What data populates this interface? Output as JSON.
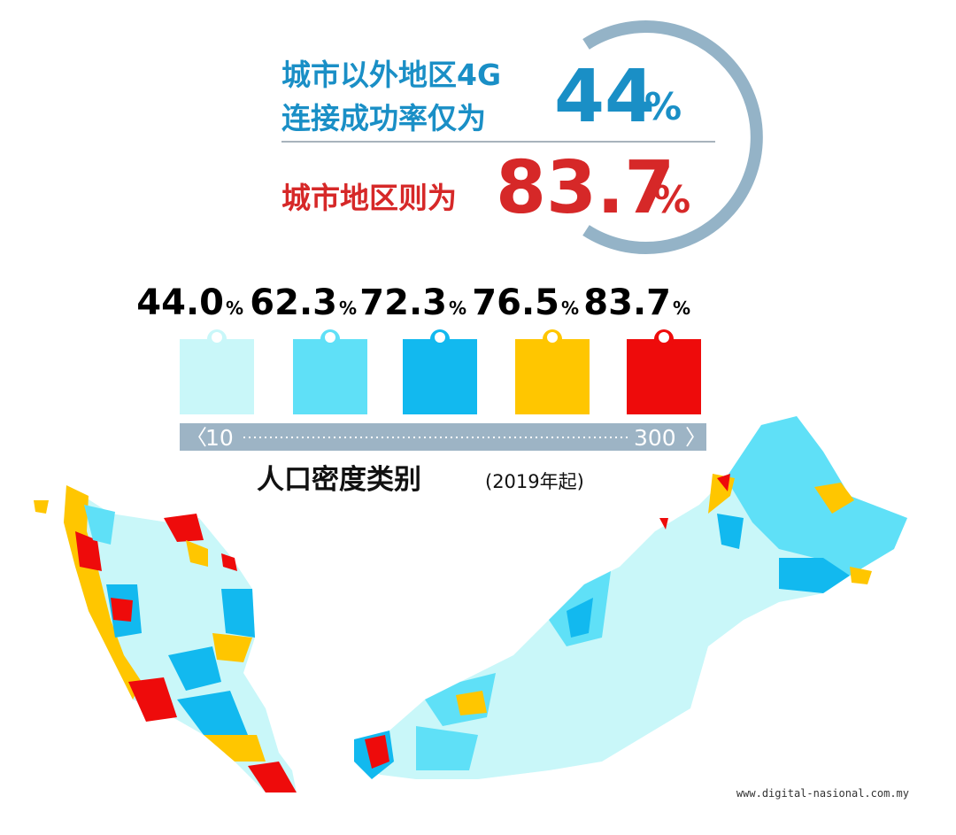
{
  "headline": {
    "line1": "城市以外地区4G",
    "line2": "连接成功率仅为",
    "rural_value": "44",
    "rural_unit": "%",
    "urban_text": "城市地区则为",
    "urban_value": "83.7",
    "urban_unit": "%"
  },
  "legend": {
    "items": [
      {
        "value": "44.0",
        "unit": "%",
        "color": "#c9f7f9"
      },
      {
        "value": "62.3",
        "unit": "%",
        "color": "#5fe0f7"
      },
      {
        "value": "72.3",
        "unit": "%",
        "color": "#12b9ef"
      },
      {
        "value": "76.5",
        "unit": "%",
        "color": "#ffc600"
      },
      {
        "value": "83.7",
        "unit": "%",
        "color": "#ee0b0b"
      }
    ],
    "scale_min": "10",
    "scale_max": "300",
    "title": "人口密度类别",
    "subtitle": "(2019年起)"
  },
  "source": "www.digital-nasional.com.my"
}
